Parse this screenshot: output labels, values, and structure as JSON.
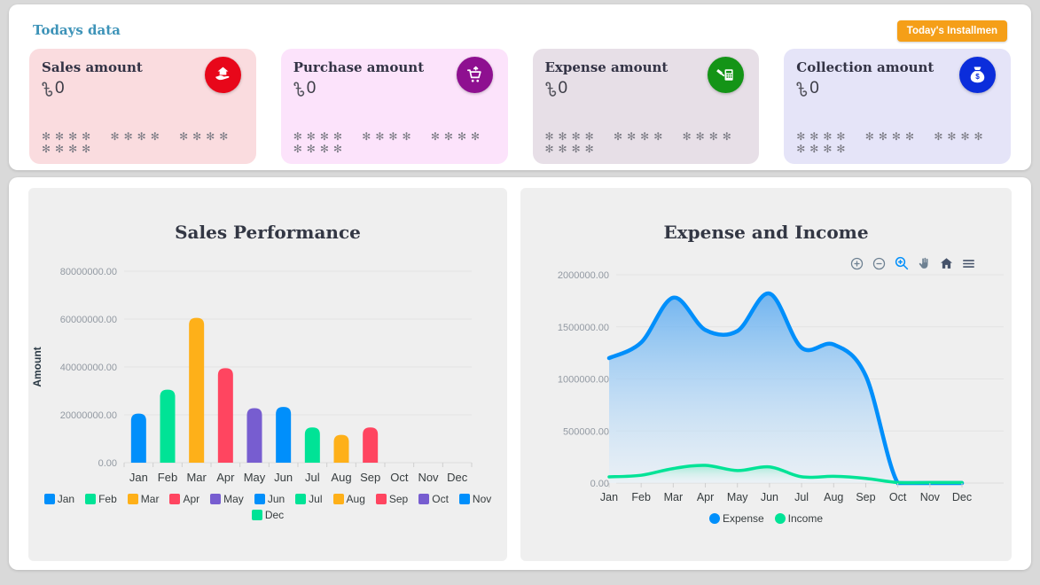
{
  "header": {
    "title": "Todays data",
    "title_color": "#3d93b8",
    "button_label": "Today's Installmen",
    "button_color": "#f59f18"
  },
  "stat_cards": [
    {
      "title": "Sales amount",
      "currency_symbol": "৳",
      "amount": "0",
      "masked": "✻✻✻✻ ✻✻✻✻ ✻✻✻✻ ✻✻✻✻",
      "bg": "#fadcdf",
      "icon": "hand-house-icon",
      "icon_bg": "#e8071a"
    },
    {
      "title": "Purchase amount",
      "currency_symbol": "৳",
      "amount": "0",
      "masked": "✻✻✻✻ ✻✻✻✻ ✻✻✻✻ ✻✻✻✻",
      "bg": "#fce3fb",
      "icon": "cart-arrow-icon",
      "icon_bg": "#8e1090"
    },
    {
      "title": "Expense amount",
      "currency_symbol": "৳",
      "amount": "0",
      "masked": "✻✻✻✻ ✻✻✻✻ ✻✻✻✻ ✻✻✻✻",
      "bg": "#e7dfe7",
      "icon": "calculator-hand-icon",
      "icon_bg": "#149417"
    },
    {
      "title": "Collection amount",
      "currency_symbol": "৳",
      "amount": "0",
      "masked": "✻✻✻✻ ✻✻✻✻ ✻✻✻✻ ✻✻✻✻",
      "bg": "#e5e4f8",
      "icon": "money-bag-icon",
      "icon_bg": "#0b2ddb"
    }
  ],
  "chart_data": [
    {
      "type": "bar",
      "title": "Sales Performance",
      "xlabel": "",
      "ylabel": "Amount",
      "categories": [
        "Jan",
        "Feb",
        "Mar",
        "Apr",
        "May",
        "Jun",
        "Jul",
        "Aug",
        "Sep",
        "Oct",
        "Nov",
        "Dec"
      ],
      "values": [
        20500000,
        30500000,
        60500000,
        39500000,
        22800000,
        23300000,
        14700000,
        11600000,
        14700000,
        0,
        0,
        0
      ],
      "ylim": [
        0,
        80000000
      ],
      "yticks": [
        80000000,
        60000000,
        40000000,
        20000000,
        0
      ],
      "ytick_format": "fixed2",
      "grid": true,
      "legend_position": "bottom",
      "palette": [
        "#008FFB",
        "#00E396",
        "#FEB019",
        "#FF4560",
        "#775DD0"
      ]
    },
    {
      "type": "area",
      "title": "Expense and Income",
      "xlabel": "",
      "ylabel": "",
      "categories": [
        "Jan",
        "Feb",
        "Mar",
        "Apr",
        "May",
        "Jun",
        "Jul",
        "Aug",
        "Sep",
        "Oct",
        "Nov",
        "Dec"
      ],
      "series": [
        {
          "name": "Expense",
          "color": "#008FFB",
          "values": [
            1200000,
            1350000,
            1780000,
            1470000,
            1460000,
            1820000,
            1300000,
            1330000,
            1030000,
            0,
            0,
            0
          ]
        },
        {
          "name": "Income",
          "color": "#00E396",
          "values": [
            60000,
            75000,
            140000,
            170000,
            120000,
            155000,
            60000,
            65000,
            45000,
            5000,
            5000,
            5000
          ]
        }
      ],
      "ylim": [
        0,
        2000000
      ],
      "yticks": [
        2000000,
        1500000,
        1000000,
        500000,
        0
      ],
      "ytick_format": "fixed2",
      "grid": true,
      "legend_position": "bottom",
      "toolbar_icons": [
        "zoom-in",
        "zoom-out",
        "selection-zoom",
        "pan",
        "home",
        "menu"
      ],
      "toolbar_active": "selection-zoom"
    }
  ]
}
